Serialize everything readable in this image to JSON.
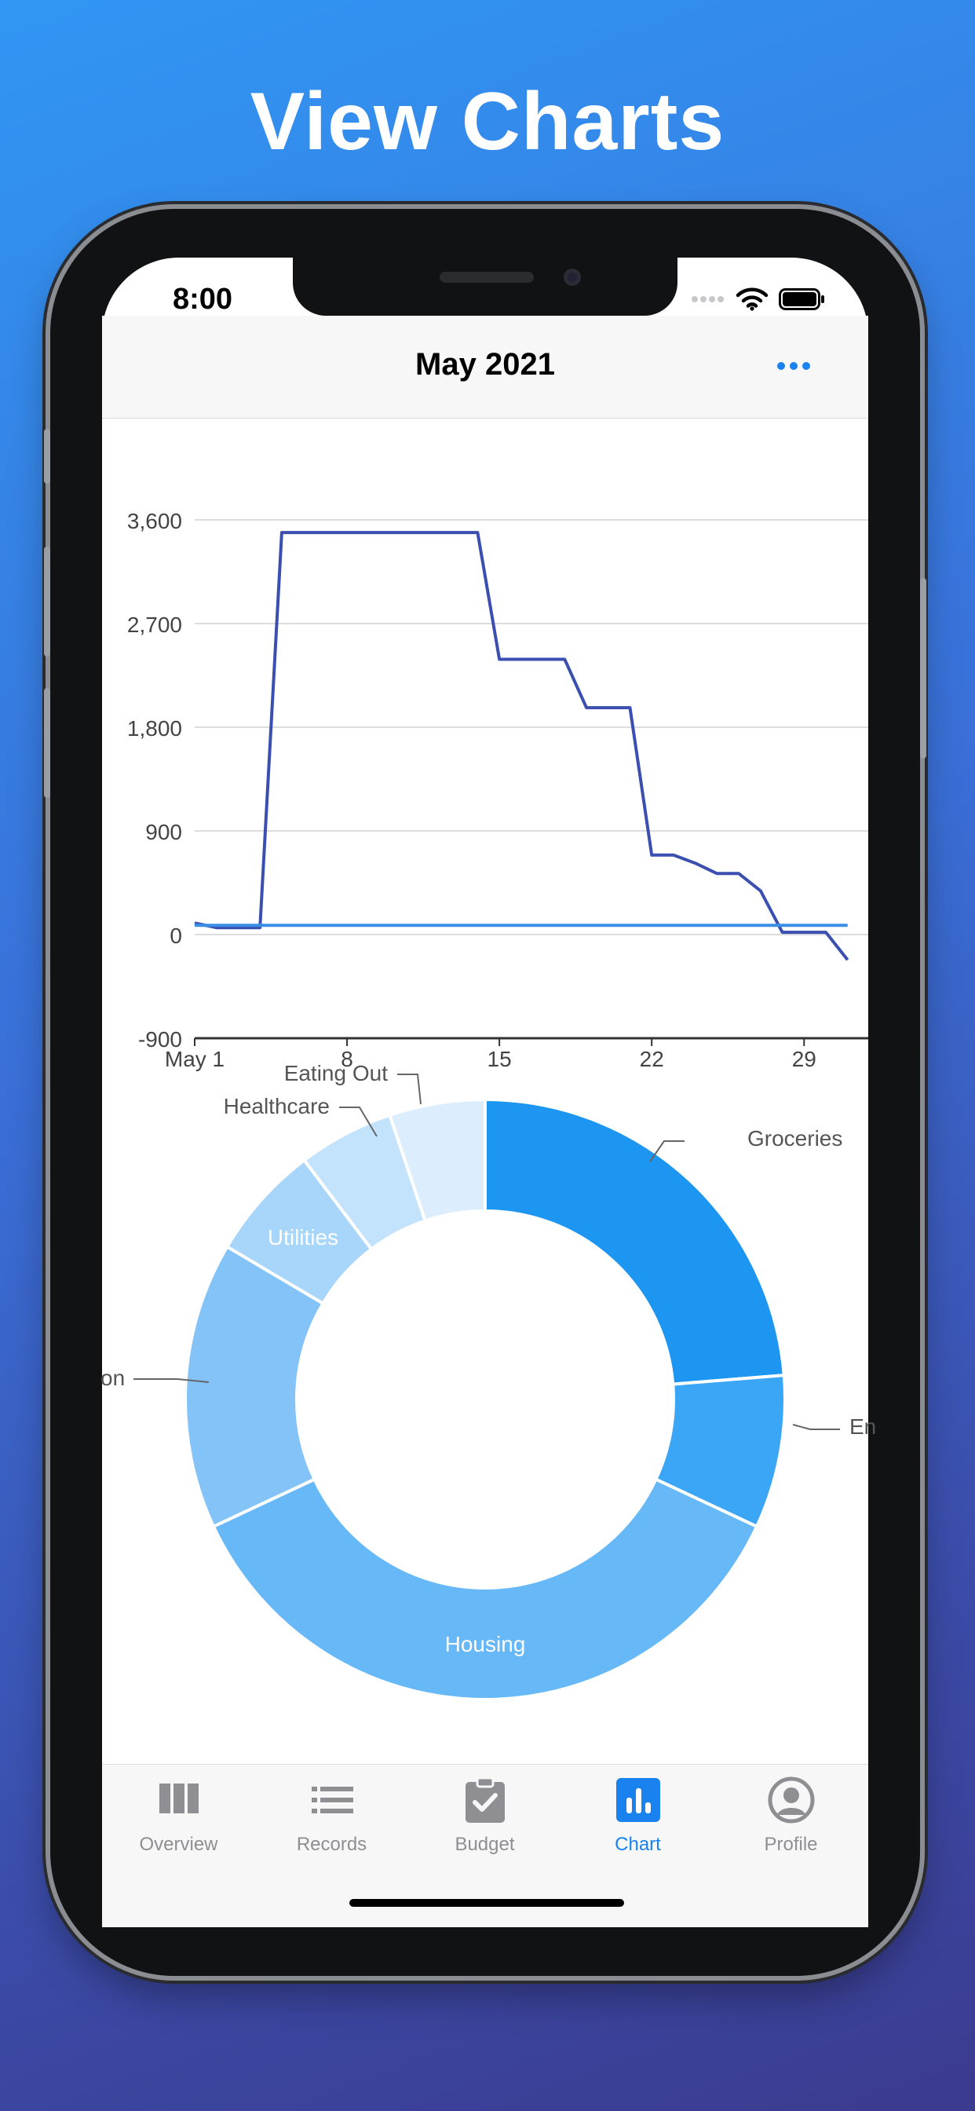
{
  "headline": "View Charts",
  "status_bar": {
    "time": "8:00"
  },
  "nav": {
    "title": "May 2021",
    "more_icon": "ellipsis-icon"
  },
  "tabs": [
    {
      "label": "Overview",
      "icon": "columns-icon",
      "active": false
    },
    {
      "label": "Records",
      "icon": "list-icon",
      "active": false
    },
    {
      "label": "Budget",
      "icon": "clipboard-check-icon",
      "active": false
    },
    {
      "label": "Chart",
      "icon": "bar-chart-icon",
      "active": true
    },
    {
      "label": "Profile",
      "icon": "person-circle-icon",
      "active": false
    }
  ],
  "colors": {
    "accent": "#1a82ee",
    "line_series": "#3a4fb0",
    "baseline_series": "#3a8ee6"
  },
  "chart_data": [
    {
      "type": "line",
      "title": "",
      "xlabel": "",
      "ylabel": "",
      "ylim": [
        -900,
        3600
      ],
      "yticks": [
        "-900",
        "0",
        "900",
        "1,800",
        "2,700",
        "3,600"
      ],
      "ytick_values": [
        -900,
        0,
        900,
        1800,
        2700,
        3600
      ],
      "xticks": [
        "May 1",
        "8",
        "15",
        "22",
        "29"
      ],
      "xtick_values": [
        1,
        8,
        15,
        22,
        29
      ],
      "xlim": [
        1,
        31
      ],
      "grid": true,
      "series": [
        {
          "x": [
            1,
            2,
            4,
            5,
            6,
            10,
            14,
            15,
            16,
            18,
            19,
            20,
            21,
            22,
            23,
            24,
            25,
            26,
            27,
            28,
            29,
            30,
            31
          ],
          "y": [
            100,
            60,
            60,
            3490,
            3490,
            3490,
            3490,
            2390,
            2390,
            2390,
            1970,
            1970,
            1970,
            690,
            690,
            620,
            530,
            530,
            380,
            20,
            20,
            20,
            -220
          ]
        },
        {
          "x": [
            1,
            31
          ],
          "y": [
            80,
            80
          ]
        }
      ]
    },
    {
      "type": "pie",
      "style": "donut",
      "labels": [
        "Groceries",
        "En",
        "Housing",
        "on",
        "Utilities",
        "Healthcare",
        "Eating Out"
      ],
      "values": [
        23,
        8,
        35,
        15,
        6,
        5,
        5
      ],
      "colors": [
        "#1c96f0",
        "#3aa6f5",
        "#66b8f7",
        "#83c3f8",
        "#a8d5fa",
        "#c3e2fb",
        "#dcedfd"
      ],
      "inside_labels": [
        false,
        false,
        true,
        false,
        true,
        false,
        false
      ]
    }
  ]
}
